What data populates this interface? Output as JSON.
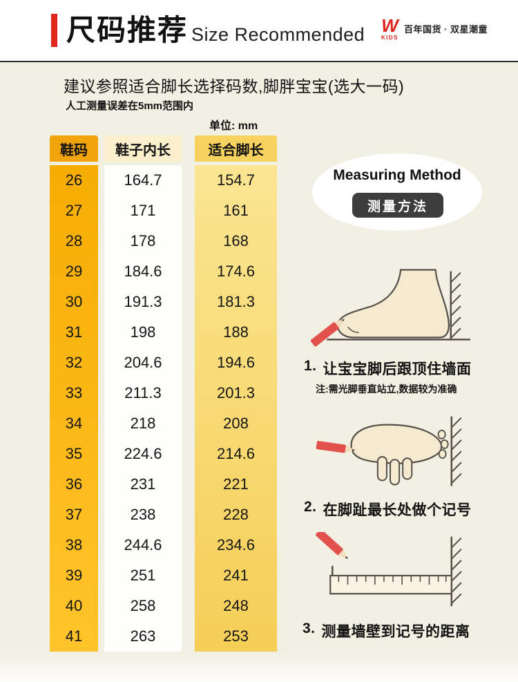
{
  "header": {
    "title_cn": "尺码推荐",
    "title_en": "Size Recommended",
    "brand": {
      "logo_letter": "W",
      "logo_sub": "KIDS",
      "tagline": "百年国货 · 双星潮童"
    }
  },
  "intro": {
    "advice": "建议参照适合脚长选择码数,脚胖宝宝(选大一码)",
    "tolerance": "人工测量误差在5mm范围内",
    "unit_label": "单位: mm"
  },
  "table": {
    "headers": [
      "鞋码",
      "鞋子内长",
      "适合脚长"
    ],
    "rows": [
      [
        "26",
        "164.7",
        "154.7"
      ],
      [
        "27",
        "171",
        "161"
      ],
      [
        "28",
        "178",
        "168"
      ],
      [
        "29",
        "184.6",
        "174.6"
      ],
      [
        "30",
        "191.3",
        "181.3"
      ],
      [
        "31",
        "198",
        "188"
      ],
      [
        "32",
        "204.6",
        "194.6"
      ],
      [
        "33",
        "211.3",
        "201.3"
      ],
      [
        "34",
        "218",
        "208"
      ],
      [
        "35",
        "224.6",
        "214.6"
      ],
      [
        "36",
        "231",
        "221"
      ],
      [
        "37",
        "238",
        "228"
      ],
      [
        "38",
        "244.6",
        "234.6"
      ],
      [
        "39",
        "251",
        "241"
      ],
      [
        "40",
        "258",
        "248"
      ],
      [
        "41",
        "263",
        "253"
      ]
    ]
  },
  "measuring": {
    "title_en": "Measuring Method",
    "title_cn": "测量方法",
    "steps": [
      {
        "num": "1.",
        "text": "让宝宝脚后跟顶住墙面",
        "note": "注:需光脚垂直站立,数据较为准确"
      },
      {
        "num": "2.",
        "text": "在脚趾最长处做个记号"
      },
      {
        "num": "3.",
        "text": "测量墙壁到记号的距离"
      }
    ]
  },
  "colors": {
    "accent_red": "#E0251C",
    "gold_column": "#F7B106",
    "yellow_column": "#FAE189",
    "page_bg": "#F2EFE3",
    "badge_dark": "#3C3C3C"
  }
}
